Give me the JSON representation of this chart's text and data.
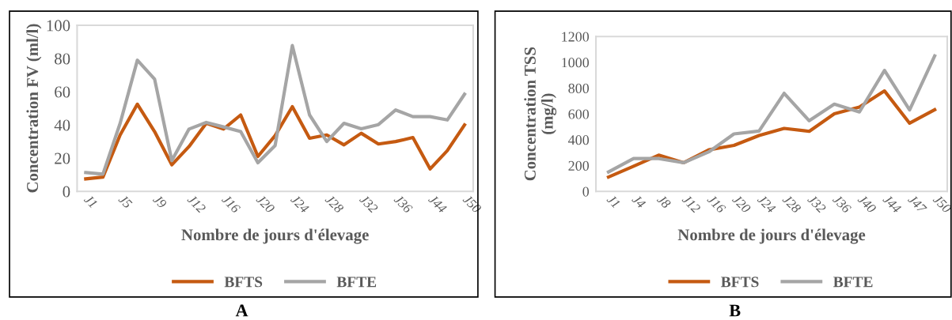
{
  "chart_data": [
    {
      "type": "line",
      "xlabel": "Nombre de jours d'élevage",
      "ylabel": "Concentration FV (ml/l)",
      "categories": [
        "J1",
        null,
        "J5",
        null,
        "J9",
        null,
        "J12",
        null,
        "J16",
        null,
        "J20",
        null,
        "J24",
        null,
        "J28",
        null,
        "J32",
        null,
        "J36",
        null,
        "J44",
        null,
        "J50"
      ],
      "ylim": [
        0,
        100
      ],
      "yticks": [
        0,
        20,
        40,
        60,
        80,
        100
      ],
      "grid": false,
      "legend": "bottom",
      "marker": "none",
      "line_style": "solid",
      "annotations": [
        "A"
      ],
      "series": [
        {
          "name": "BFTS",
          "color": "#c55a11",
          "values": [
            7.5,
            8.6,
            34,
            52.5,
            36,
            16,
            27,
            41,
            37.5,
            46,
            21,
            33.6,
            51,
            32,
            34,
            28,
            35,
            28.5,
            30,
            32.4,
            13.5,
            24.5,
            40
          ]
        },
        {
          "name": "BFTE",
          "color": "#a5a5a5",
          "values": [
            11.3,
            10.4,
            41,
            79,
            67.6,
            18.5,
            37.5,
            41.5,
            38.8,
            36,
            17.2,
            27.6,
            87.8,
            46,
            30,
            41,
            37.7,
            40.2,
            49,
            45,
            45,
            43,
            58.5
          ]
        }
      ]
    },
    {
      "type": "line",
      "xlabel": "Nombre de jours d'élevage",
      "ylabel": "Concentration TSS\n(mg/l)",
      "categories": [
        "J1",
        "J4",
        "J8",
        "J12",
        "J16",
        "J20",
        "J24",
        "J28",
        "J32",
        "J36",
        "J40",
        "J44",
        "J47",
        "J50"
      ],
      "ylim": [
        0,
        1200
      ],
      "yticks": [
        0,
        200,
        400,
        600,
        800,
        1000,
        1200
      ],
      "grid": false,
      "legend": "bottom",
      "marker": "none",
      "line_style": "solid",
      "annotations": [
        "B"
      ],
      "series": [
        {
          "name": "BFTS",
          "color": "#c55a11",
          "values": [
            111,
            195,
            281,
            222,
            322,
            356,
            433,
            488,
            465,
            601,
            653,
            778,
            528,
            633
          ]
        },
        {
          "name": "BFTE",
          "color": "#a5a5a5",
          "values": [
            150,
            254,
            254,
            222,
            306,
            445,
            467,
            760,
            547,
            676,
            615,
            937,
            631,
            1050
          ]
        }
      ]
    }
  ]
}
